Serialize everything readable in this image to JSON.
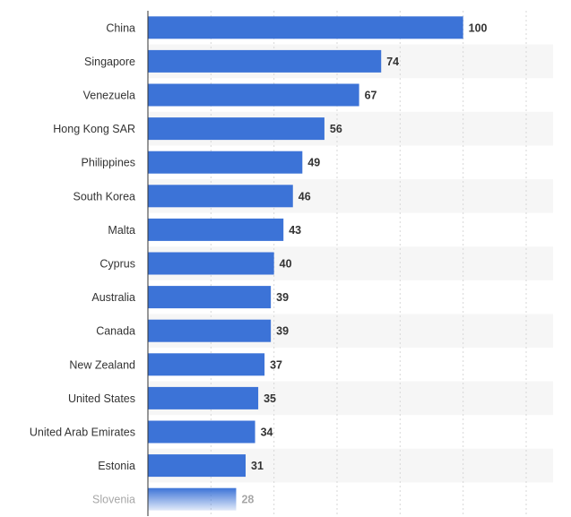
{
  "chart_data": {
    "type": "bar",
    "orientation": "horizontal",
    "title": "",
    "xlabel": "",
    "ylabel": "",
    "categories": [
      "China",
      "Singapore",
      "Venezuela",
      "Hong Kong SAR",
      "Philippines",
      "South Korea",
      "Malta",
      "Cyprus",
      "Australia",
      "Canada",
      "New Zealand",
      "United States",
      "United Arab Emirates",
      "Estonia",
      "Slovenia"
    ],
    "values": [
      100,
      74,
      67,
      56,
      49,
      46,
      43,
      40,
      39,
      39,
      37,
      35,
      34,
      31,
      28
    ],
    "xlim": [
      0,
      120
    ],
    "grid": true,
    "legend": "none",
    "bar_color": "#3c73d7",
    "faded_last_row": true
  }
}
